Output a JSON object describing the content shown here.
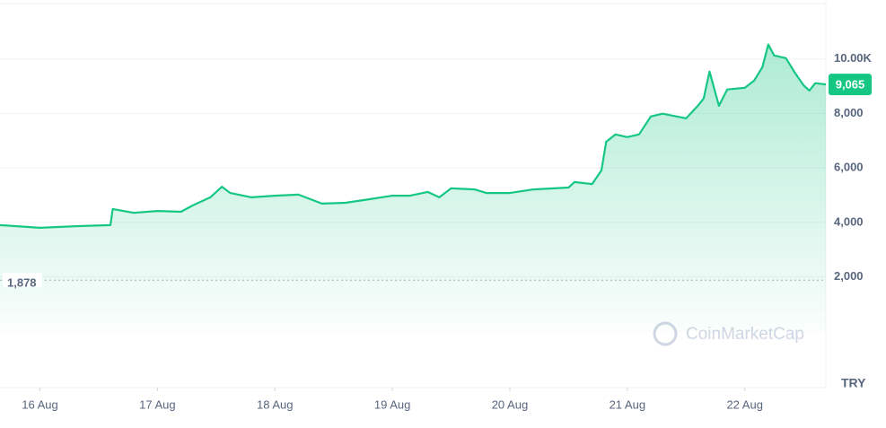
{
  "chart_data": {
    "type": "line",
    "x": [
      15.66,
      16.0,
      16.3,
      16.6,
      16.62,
      16.8,
      17.0,
      17.2,
      17.3,
      17.45,
      17.55,
      17.62,
      17.8,
      18.0,
      18.2,
      18.4,
      18.6,
      18.8,
      19.0,
      19.15,
      19.3,
      19.4,
      19.5,
      19.7,
      19.8,
      20.0,
      20.2,
      20.5,
      20.55,
      20.7,
      20.78,
      20.82,
      20.9,
      21.0,
      21.1,
      21.2,
      21.3,
      21.5,
      21.6,
      21.65,
      21.7,
      21.78,
      21.85,
      22.0,
      22.08,
      22.15,
      22.2,
      22.25,
      22.35,
      22.43,
      22.5,
      22.55,
      22.6,
      22.69
    ],
    "values": [
      3900,
      3800,
      3860,
      3900,
      4490,
      4350,
      4420,
      4390,
      4620,
      4920,
      5310,
      5080,
      4920,
      4980,
      5020,
      4690,
      4720,
      4850,
      4980,
      4980,
      5120,
      4920,
      5250,
      5210,
      5080,
      5080,
      5210,
      5280,
      5480,
      5410,
      5910,
      6960,
      7230,
      7130,
      7230,
      7890,
      7990,
      7820,
      8280,
      8550,
      9540,
      8280,
      8880,
      8940,
      9210,
      9700,
      10530,
      10130,
      10030,
      9470,
      9040,
      8840,
      9110,
      9065
    ],
    "color": "#16c784",
    "xlim": [
      15.66,
      22.69
    ],
    "xticks": [
      {
        "value": 16,
        "label": "16 Aug"
      },
      {
        "value": 17,
        "label": "17 Aug"
      },
      {
        "value": 18,
        "label": "18 Aug"
      },
      {
        "value": 19,
        "label": "19 Aug"
      },
      {
        "value": 20,
        "label": "20 Aug"
      },
      {
        "value": 21,
        "label": "21 Aug"
      },
      {
        "value": 22,
        "label": "22 Aug"
      }
    ],
    "ylim": [
      -2000,
      12000
    ],
    "yticks": [
      {
        "value": 2000,
        "label": "2,000"
      },
      {
        "value": 4000,
        "label": "4,000"
      },
      {
        "value": 6000,
        "label": "6,000"
      },
      {
        "value": 8000,
        "label": "8,000"
      },
      {
        "value": 10000,
        "label": "10.00K"
      }
    ],
    "grid": true,
    "reference": {
      "value": 1878,
      "label": "1,878"
    },
    "current": {
      "value": 9065,
      "label": "9,065"
    },
    "currency": "TRY",
    "watermark": "CoinMarketCap"
  }
}
